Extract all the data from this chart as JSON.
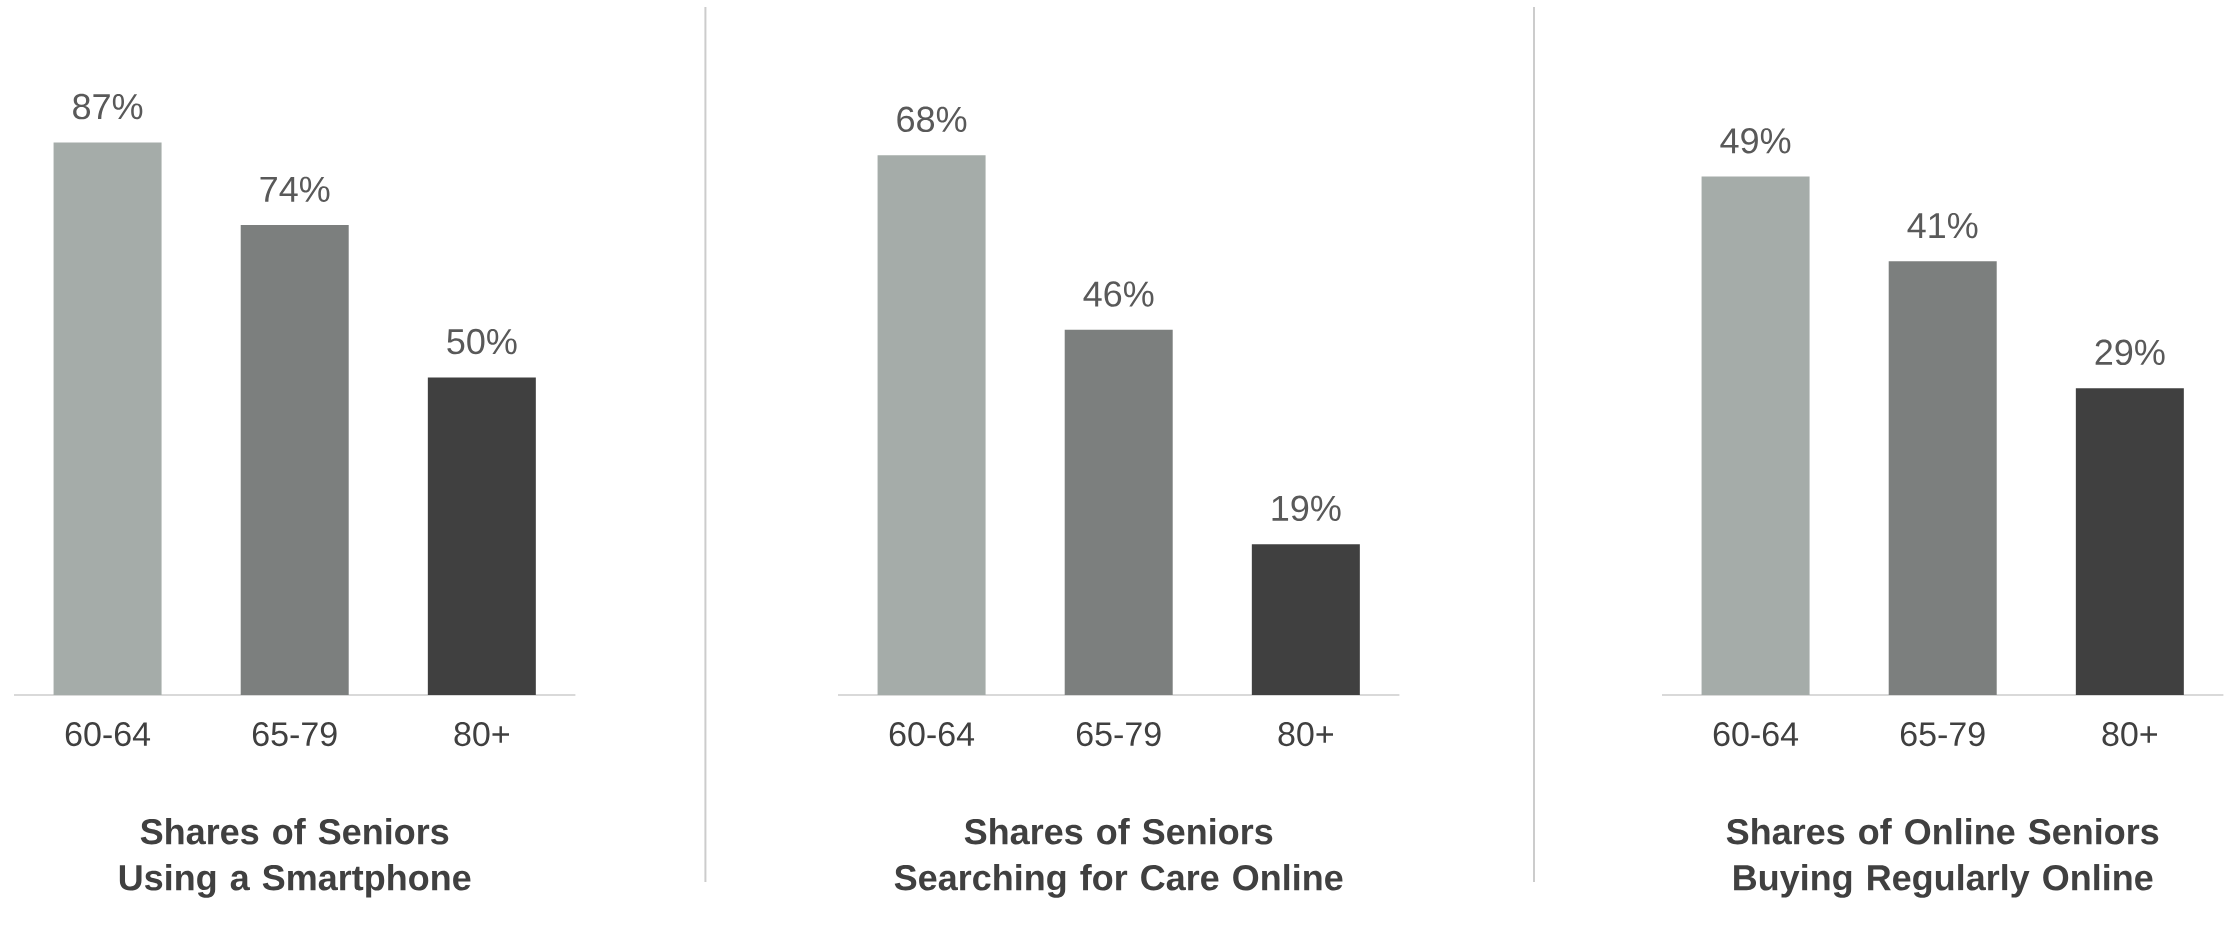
{
  "chart_data": [
    {
      "type": "bar",
      "title": "Shares of Seniors Using a Smartphone",
      "categories": [
        "60-64",
        "65-79",
        "80+"
      ],
      "values": [
        87,
        74,
        50
      ],
      "colors": [
        "#a5aca9",
        "#7c7f7e",
        "#404040"
      ],
      "value_labels": [
        "87%",
        "74%",
        "50%"
      ]
    },
    {
      "type": "bar",
      "title": "Shares of Seniors Searching for Care Online",
      "categories": [
        "60-64",
        "65-79",
        "80+"
      ],
      "values": [
        68,
        46,
        19
      ],
      "colors": [
        "#a5aca9",
        "#7c7f7e",
        "#404040"
      ],
      "value_labels": [
        "68%",
        "46%",
        "19%"
      ]
    },
    {
      "type": "bar",
      "title": "Shares of Online Seniors Buying Regularly Online",
      "categories": [
        "60-64",
        "65-79",
        "80+"
      ],
      "values": [
        49,
        41,
        29
      ],
      "colors": [
        "#a5aca9",
        "#7c7f7e",
        "#404040"
      ],
      "value_labels": [
        "49%",
        "41%",
        "29%"
      ]
    }
  ]
}
